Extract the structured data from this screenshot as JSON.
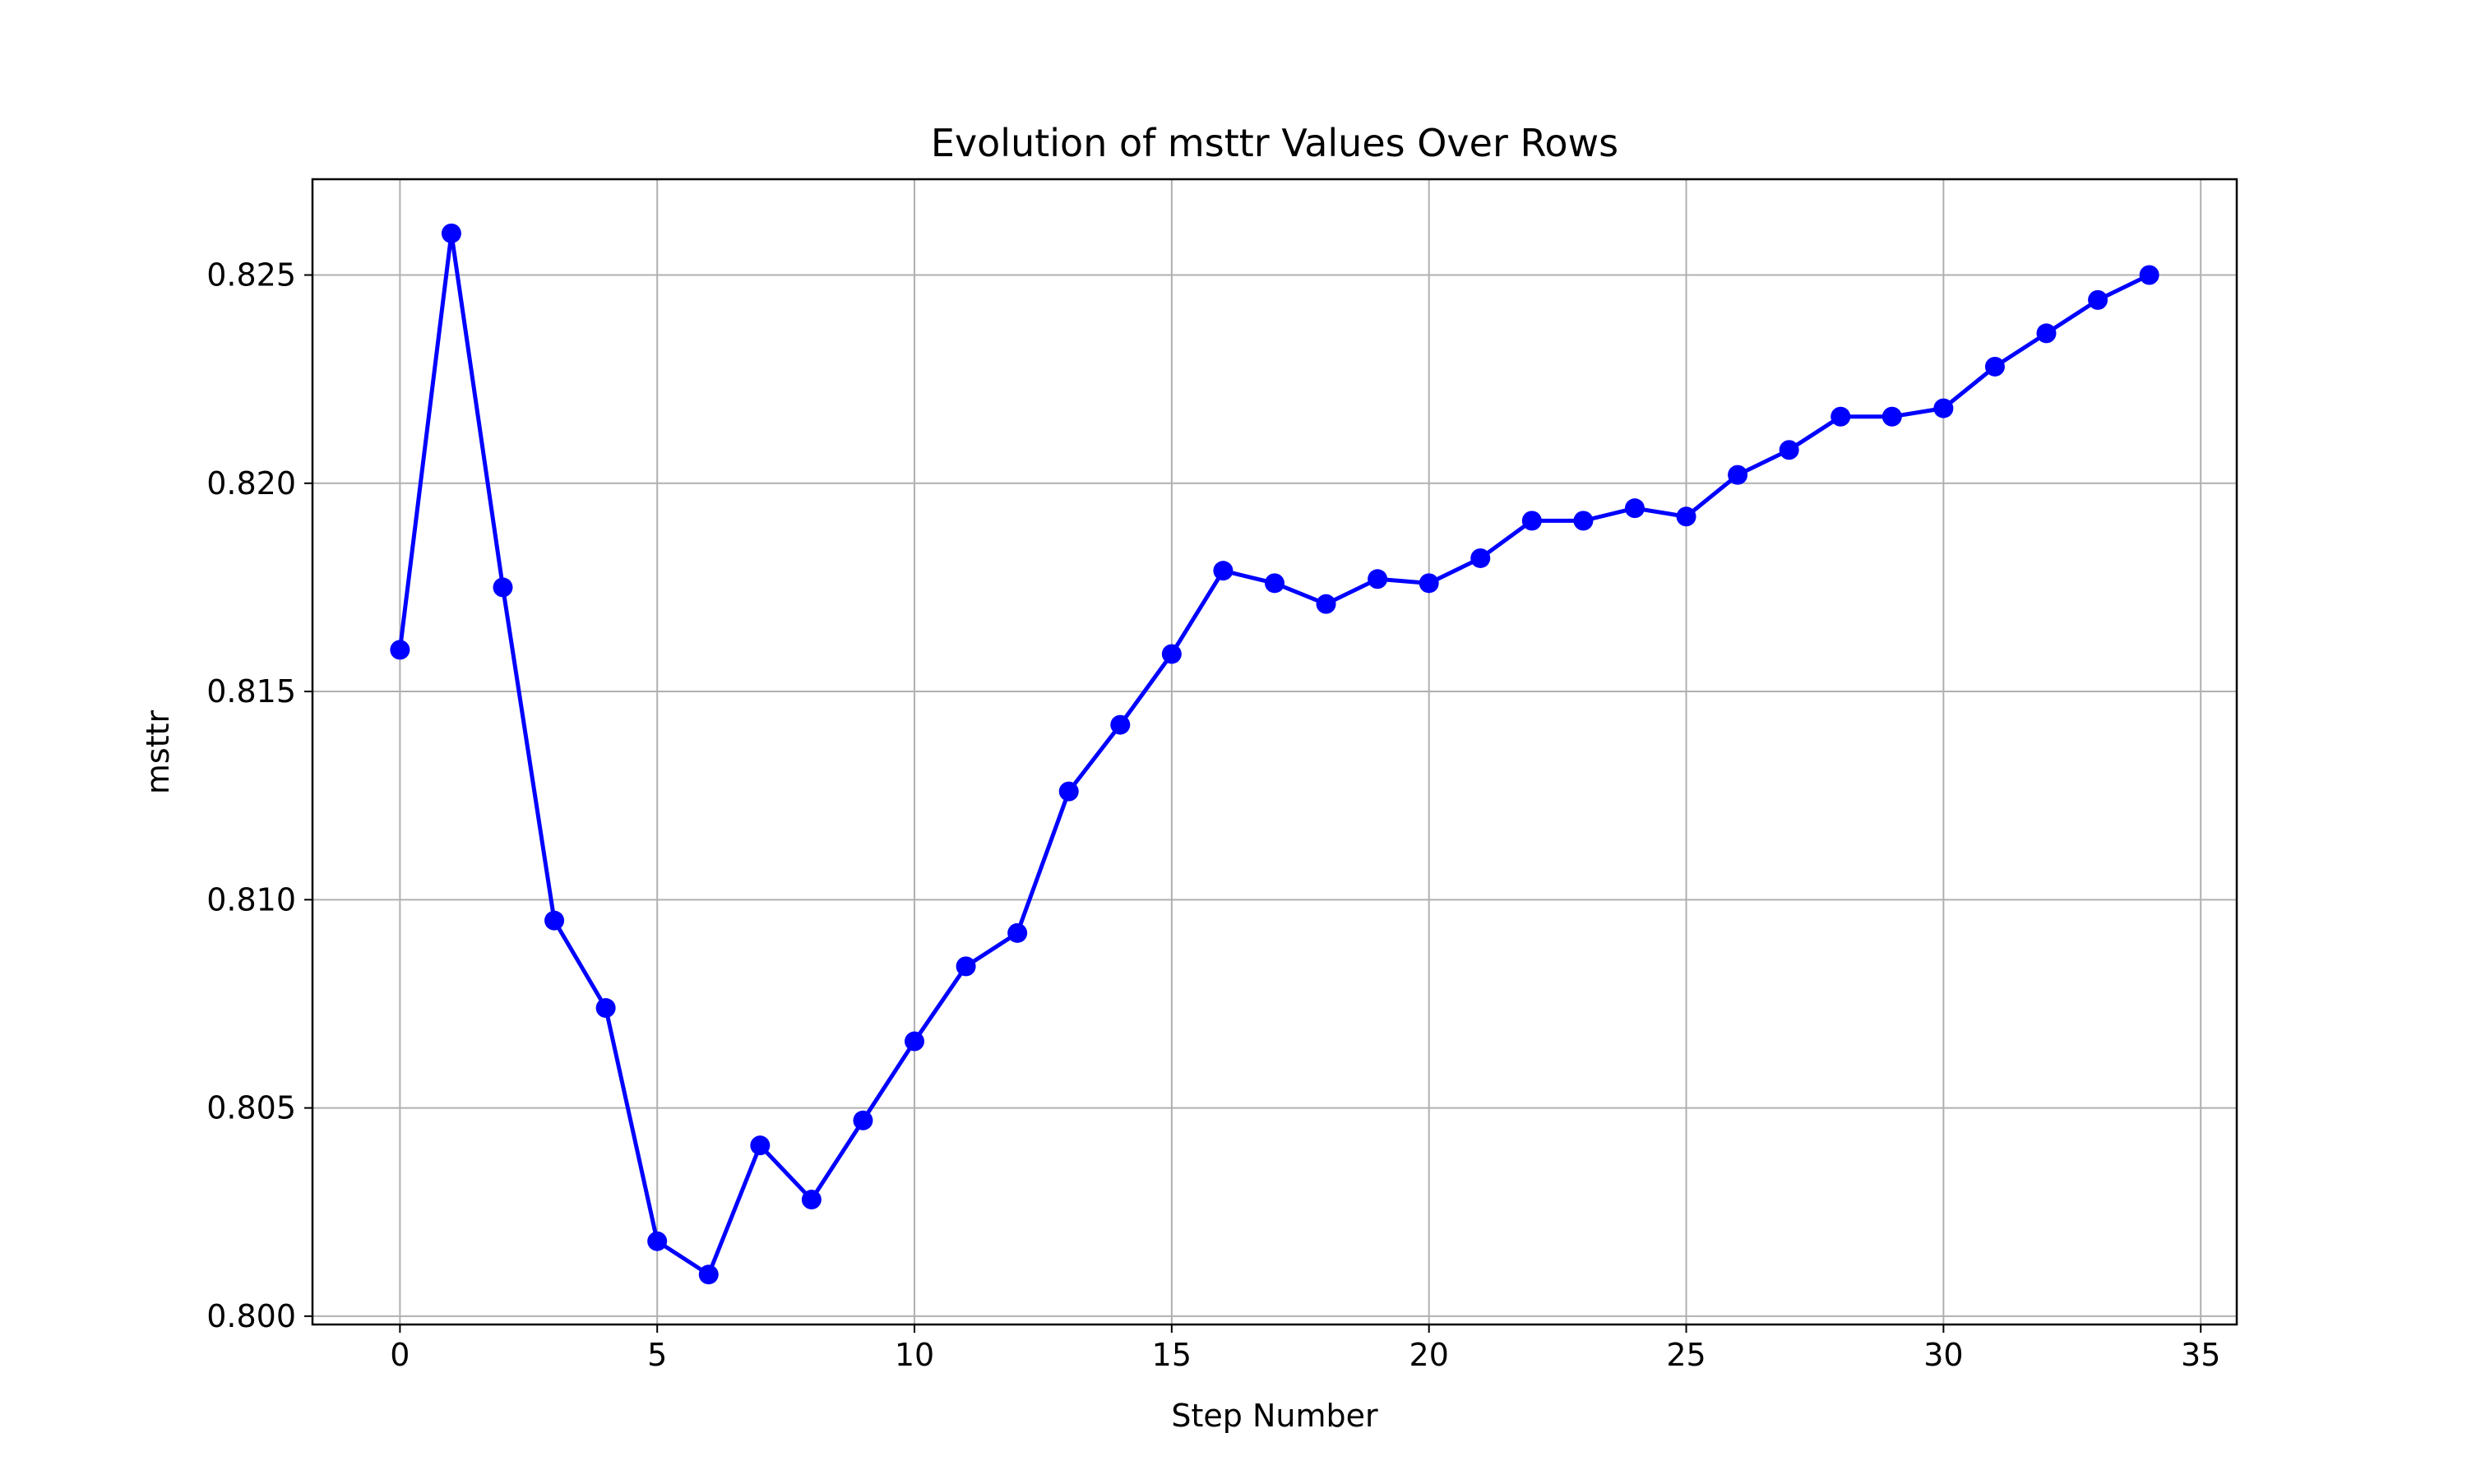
{
  "chart_data": {
    "type": "line",
    "title": "Evolution of msttr Values Over Rows",
    "xlabel": "Step Number",
    "ylabel": "msttr",
    "xlim": [
      -1.7,
      35.7
    ],
    "ylim": [
      0.7998,
      0.8273
    ],
    "x_ticks": [
      0,
      5,
      10,
      15,
      20,
      25,
      30,
      35
    ],
    "x_tick_labels": [
      "0",
      "5",
      "10",
      "15",
      "20",
      "25",
      "30",
      "35"
    ],
    "y_ticks": [
      0.8,
      0.805,
      0.81,
      0.815,
      0.82,
      0.825
    ],
    "y_tick_labels": [
      "0.800",
      "0.805",
      "0.810",
      "0.815",
      "0.820",
      "0.825"
    ],
    "grid": true,
    "legend": false,
    "series": [
      {
        "color": "#0000ff",
        "marker": "circle",
        "x": [
          0,
          1,
          2,
          3,
          4,
          5,
          6,
          7,
          8,
          9,
          10,
          11,
          12,
          13,
          14,
          15,
          16,
          17,
          18,
          19,
          20,
          21,
          22,
          23,
          24,
          25,
          26,
          27,
          28,
          29,
          30,
          31,
          32,
          33,
          34
        ],
        "values": [
          0.816,
          0.826,
          0.8175,
          0.8095,
          0.8074,
          0.8018,
          0.801,
          0.8041,
          0.8028,
          0.8047,
          0.8066,
          0.8084,
          0.8092,
          0.8126,
          0.8142,
          0.8159,
          0.8179,
          0.8176,
          0.8171,
          0.8177,
          0.8176,
          0.8182,
          0.8191,
          0.8191,
          0.8194,
          0.8192,
          0.8202,
          0.8208,
          0.8216,
          0.8216,
          0.8218,
          0.8228,
          0.8236,
          0.8244,
          0.825
        ]
      }
    ]
  },
  "colors": {
    "line": "#0000ff",
    "grid": "#b0b0b0",
    "axes": "#000000",
    "background": "#ffffff"
  }
}
